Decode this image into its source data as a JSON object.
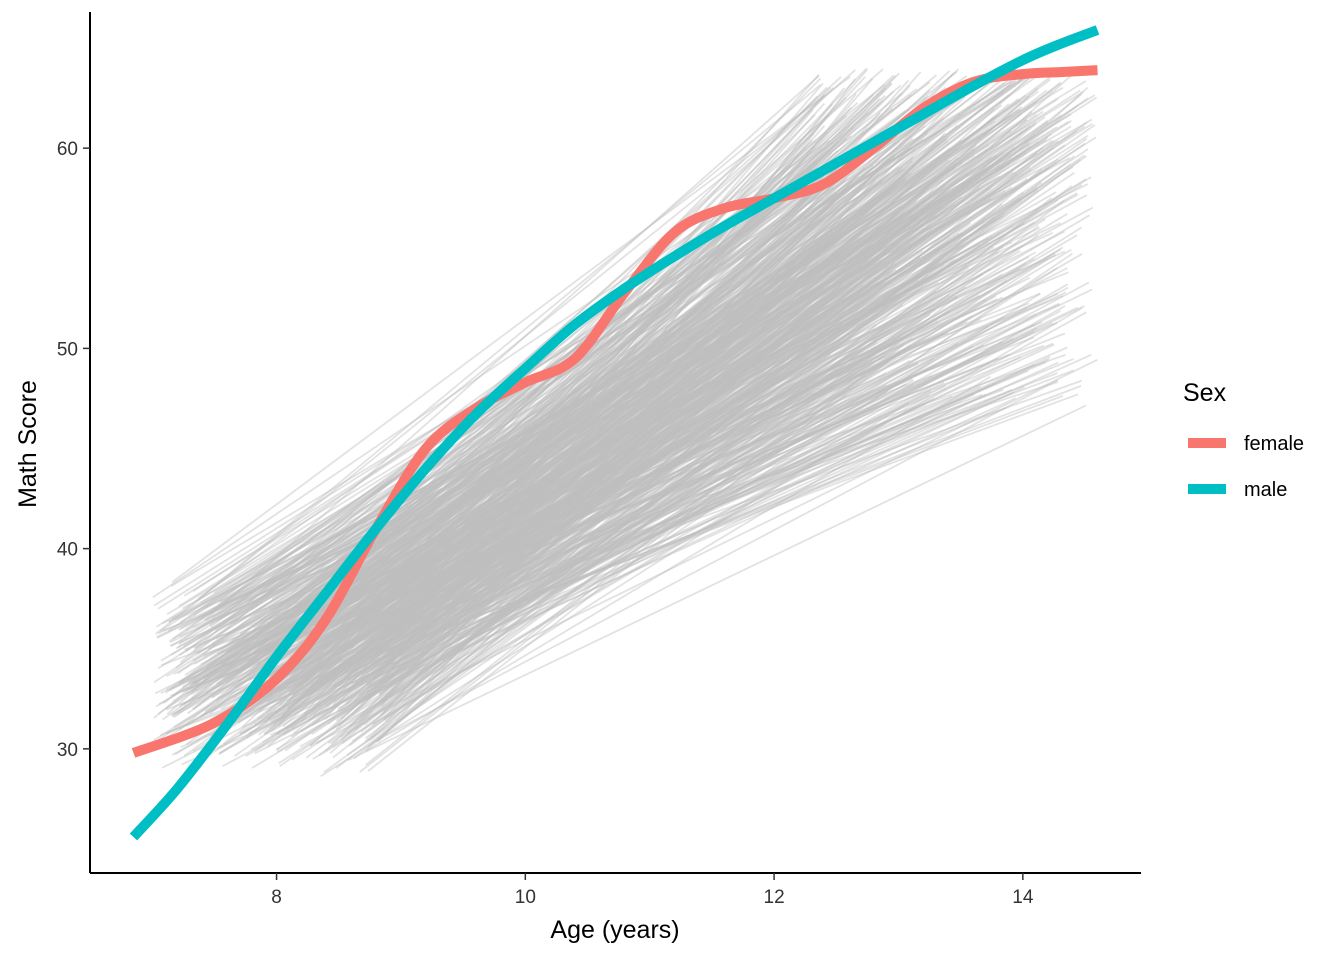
{
  "chart_data": {
    "type": "line",
    "xlabel": "Age (years)",
    "ylabel": "Math Score",
    "xlim": [
      6.5,
      14.95
    ],
    "ylim": [
      23.8,
      66.8
    ],
    "x_ticks": [
      8,
      10,
      12,
      14
    ],
    "y_ticks": [
      30,
      40,
      50,
      60
    ],
    "grid": false,
    "legend": {
      "title": "Sex",
      "position": "right",
      "entries": [
        {
          "label": "female",
          "color": "#F8766D"
        },
        {
          "label": "male",
          "color": "#00BFC4"
        }
      ]
    },
    "background_trajectories": {
      "color": "#BEBEBE",
      "count_approx": 700,
      "age_start_range": [
        7.0,
        8.9
      ],
      "age_end_range": [
        12.3,
        14.6
      ],
      "score_start_range": [
        28.5,
        38.5
      ],
      "score_end_range": [
        47,
        64
      ]
    },
    "series": [
      {
        "name": "female",
        "color": "#F8766D",
        "x": [
          6.85,
          7.5,
          8.0,
          8.4,
          8.8,
          9.2,
          9.6,
          10.0,
          10.4,
          10.8,
          11.2,
          11.6,
          12.0,
          12.4,
          12.8,
          13.2,
          13.6,
          14.0,
          14.3,
          14.6
        ],
        "y": [
          29.8,
          31.3,
          33.5,
          36.5,
          41.0,
          45.0,
          47.0,
          48.3,
          49.5,
          52.8,
          55.8,
          57.0,
          57.5,
          58.2,
          60.0,
          62.0,
          63.3,
          63.7,
          63.8,
          63.9
        ]
      },
      {
        "name": "male",
        "color": "#00BFC4",
        "x": [
          6.85,
          7.2,
          7.6,
          8.0,
          8.4,
          8.8,
          9.2,
          9.6,
          10.0,
          10.4,
          10.8,
          11.2,
          11.6,
          12.0,
          12.4,
          12.8,
          13.2,
          13.6,
          14.0,
          14.3,
          14.6
        ],
        "y": [
          25.6,
          28.0,
          31.2,
          34.6,
          37.8,
          41.0,
          44.0,
          46.7,
          49.0,
          51.2,
          53.0,
          54.6,
          56.1,
          57.5,
          58.9,
          60.3,
          61.7,
          63.1,
          64.4,
          65.2,
          65.9
        ]
      }
    ]
  }
}
